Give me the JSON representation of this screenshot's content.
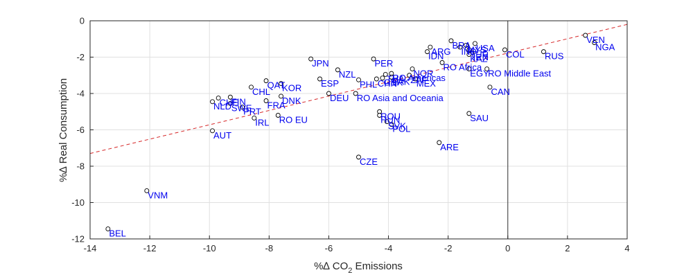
{
  "chart_data": {
    "type": "scatter",
    "xlabel": {
      "pre": "%∆ CO",
      "sub": "2",
      "post": " Emissions"
    },
    "ylabel": "%∆ Real Consumption",
    "xlim": [
      -14,
      4
    ],
    "ylim": [
      -12,
      0
    ],
    "xticks": [
      -14,
      -12,
      -10,
      -8,
      -6,
      -4,
      -2,
      0,
      2,
      4
    ],
    "yticks": [
      -12,
      -10,
      -8,
      -6,
      -4,
      -2,
      0
    ],
    "grid": true,
    "zero_line_x": 0,
    "fit_line": {
      "x": [
        -14,
        4
      ],
      "y": [
        -7.3,
        -0.2
      ],
      "color": "#d62728",
      "style": "dashed"
    },
    "point_color": "#0000ee",
    "points": [
      {
        "label": "VEN",
        "x": 2.6,
        "y": -0.8
      },
      {
        "label": "NGA",
        "x": 2.9,
        "y": -1.2
      },
      {
        "label": "RUS",
        "x": 1.2,
        "y": -1.7
      },
      {
        "label": "COL",
        "x": -0.1,
        "y": -1.6
      },
      {
        "label": "BRA",
        "x": -1.9,
        "y": -1.1
      },
      {
        "label": "USA",
        "x": -1.1,
        "y": -1.25
      },
      {
        "label": "MYS",
        "x": -1.4,
        "y": -1.35
      },
      {
        "label": "IND",
        "x": -1.6,
        "y": -1.45
      },
      {
        "label": "ARG",
        "x": -2.6,
        "y": -1.45
      },
      {
        "label": "TUR",
        "x": -1.3,
        "y": -1.6
      },
      {
        "label": "IRN",
        "x": -1.2,
        "y": -1.75
      },
      {
        "label": "KAZ",
        "x": -1.3,
        "y": -1.85
      },
      {
        "label": "IDN",
        "x": -2.7,
        "y": -1.7
      },
      {
        "label": "RO Africa",
        "x": -2.2,
        "y": -2.3
      },
      {
        "label": "EGY",
        "x": -1.3,
        "y": -2.65
      },
      {
        "label": "RO Middle East",
        "x": -0.7,
        "y": -2.65
      },
      {
        "label": "CAN",
        "x": -0.6,
        "y": -3.65
      },
      {
        "label": "SAU",
        "x": -1.3,
        "y": -5.1
      },
      {
        "label": "ARE",
        "x": -2.3,
        "y": -6.7
      },
      {
        "label": "JPN",
        "x": -6.6,
        "y": -2.1
      },
      {
        "label": "PER",
        "x": -4.5,
        "y": -2.1
      },
      {
        "label": "NZL",
        "x": -5.7,
        "y": -2.7
      },
      {
        "label": "NOR",
        "x": -3.2,
        "y": -2.65
      },
      {
        "label": "RO Americas",
        "x": -3.9,
        "y": -2.9
      },
      {
        "label": "ZAF",
        "x": -3.3,
        "y": -3.0
      },
      {
        "label": "THA",
        "x": -4.1,
        "y": -2.95
      },
      {
        "label": "PAK",
        "x": -3.9,
        "y": -3.1
      },
      {
        "label": "GBR",
        "x": -4.2,
        "y": -3.15
      },
      {
        "label": "CHN",
        "x": -4.4,
        "y": -3.2
      },
      {
        "label": "PHL",
        "x": -5.0,
        "y": -3.25
      },
      {
        "label": "MEX",
        "x": -3.1,
        "y": -3.2
      },
      {
        "label": "ESP",
        "x": -6.3,
        "y": -3.2
      },
      {
        "label": "QAT",
        "x": -8.1,
        "y": -3.3
      },
      {
        "label": "KOR",
        "x": -7.6,
        "y": -3.45
      },
      {
        "label": "CHL",
        "x": -8.6,
        "y": -3.65
      },
      {
        "label": "DEU",
        "x": -6.0,
        "y": -4.0
      },
      {
        "label": "RO Asia and Oceania",
        "x": -5.1,
        "y": -4.0
      },
      {
        "label": "DNK",
        "x": -7.6,
        "y": -4.15
      },
      {
        "label": "FIN",
        "x": -9.3,
        "y": -4.2
      },
      {
        "label": "CHE",
        "x": -9.7,
        "y": -4.25
      },
      {
        "label": "FRA",
        "x": -8.1,
        "y": -4.4
      },
      {
        "label": "NLD",
        "x": -9.9,
        "y": -4.45
      },
      {
        "label": "SWE",
        "x": -9.3,
        "y": -4.55
      },
      {
        "label": "PRT",
        "x": -8.9,
        "y": -4.75
      },
      {
        "label": "RO EU",
        "x": -7.7,
        "y": -5.2
      },
      {
        "label": "IRL",
        "x": -8.5,
        "y": -5.35
      },
      {
        "label": "AUT",
        "x": -9.9,
        "y": -6.05
      },
      {
        "label": "ROU",
        "x": -4.3,
        "y": -5.0
      },
      {
        "label": "HUN",
        "x": -4.3,
        "y": -5.2
      },
      {
        "label": "SVK",
        "x": -4.05,
        "y": -5.55
      },
      {
        "label": "POL",
        "x": -3.9,
        "y": -5.7
      },
      {
        "label": "CZE",
        "x": -5.0,
        "y": -7.5
      },
      {
        "label": "VNM",
        "x": -12.1,
        "y": -9.35
      },
      {
        "label": "BEL",
        "x": -13.4,
        "y": -11.45
      }
    ]
  }
}
